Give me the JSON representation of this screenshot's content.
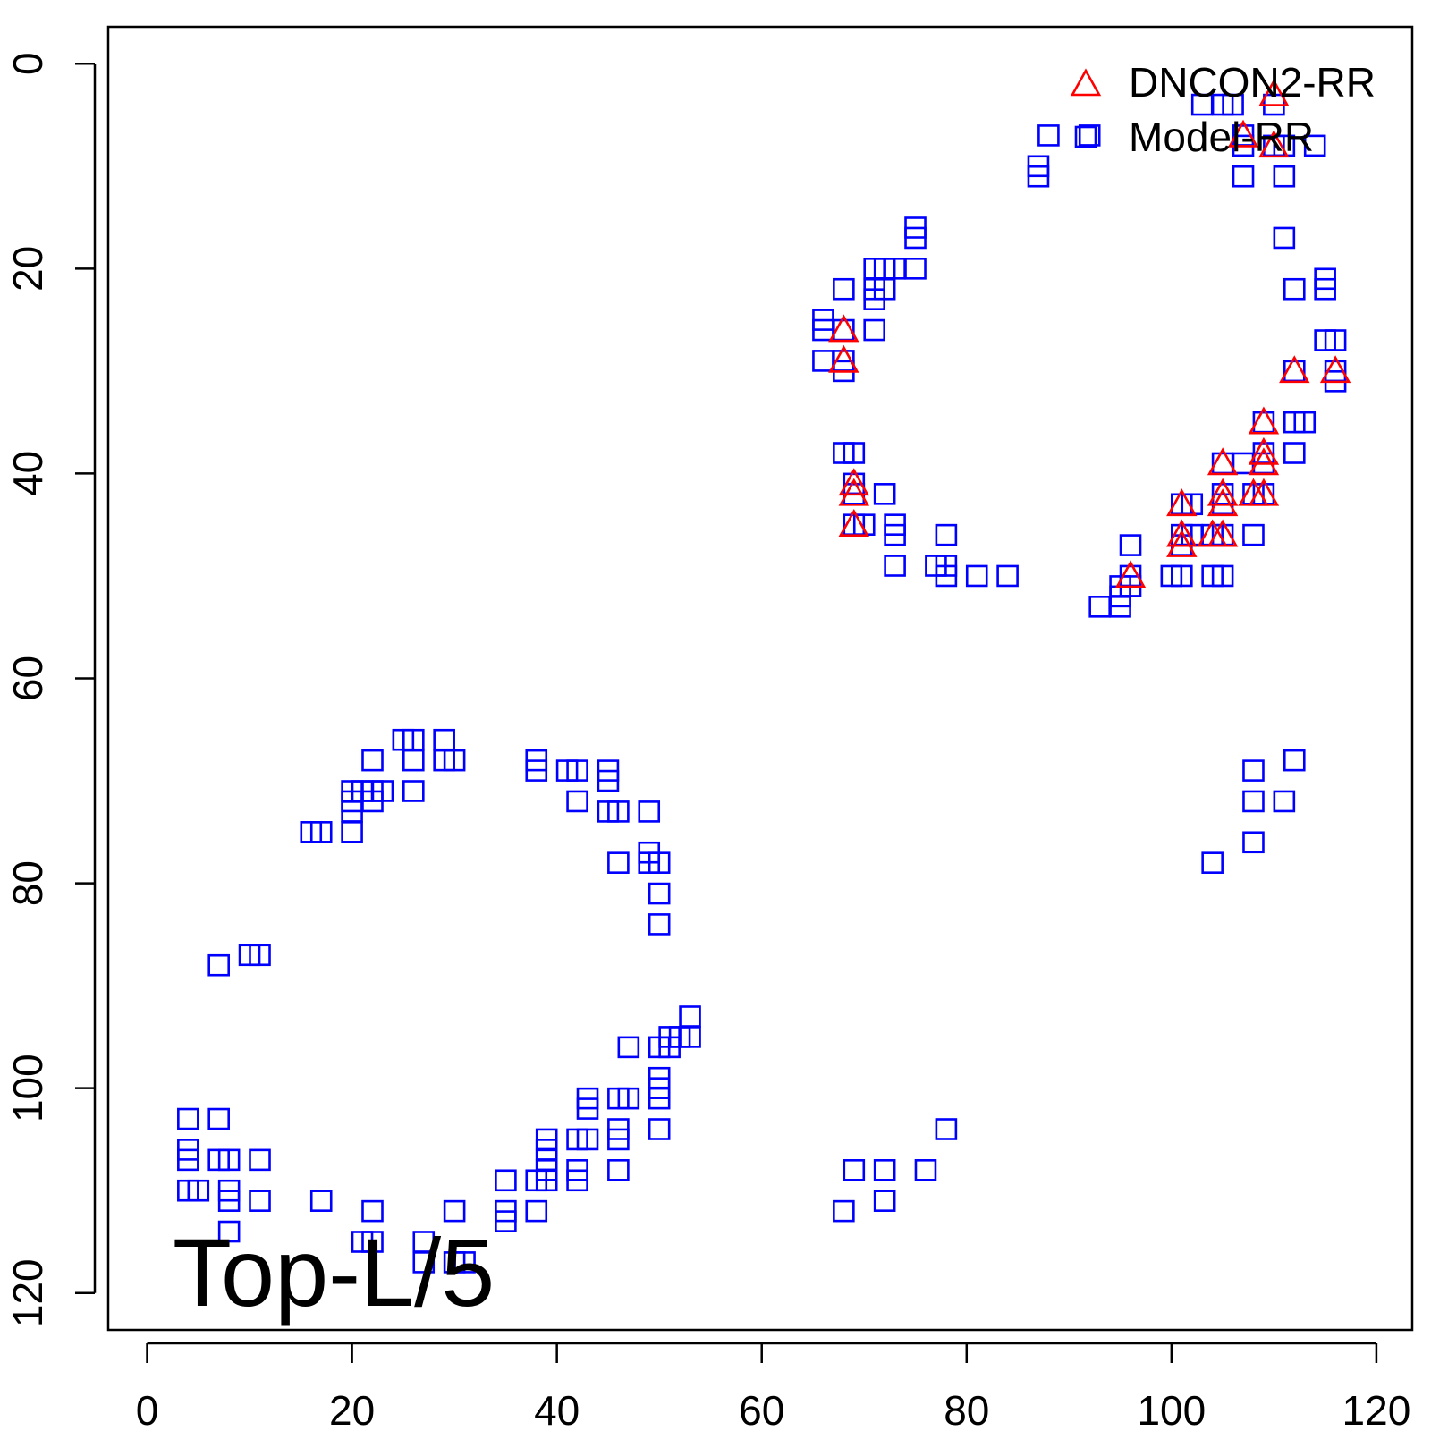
{
  "chart_data": {
    "type": "scatter",
    "title": "",
    "xlabel": "",
    "ylabel": "",
    "xlim": [
      -3.8,
      123.5
    ],
    "ylim": [
      123.6,
      -3.6
    ],
    "y_reversed": true,
    "x_ticks": [
      0,
      20,
      40,
      60,
      80,
      100,
      120
    ],
    "y_ticks": [
      0,
      20,
      40,
      60,
      80,
      100,
      120
    ],
    "grid": false,
    "legend_position": "top-right",
    "annotation": "Top-L/5",
    "series": [
      {
        "name": "DNCON2-RR",
        "marker": "triangle",
        "color": "#ff0000",
        "points": [
          [
            68,
            26
          ],
          [
            68,
            29
          ],
          [
            69,
            41
          ],
          [
            69,
            42
          ],
          [
            69,
            45
          ],
          [
            96,
            50
          ],
          [
            101,
            43
          ],
          [
            101,
            46
          ],
          [
            101,
            47
          ],
          [
            105,
            39
          ],
          [
            105,
            42
          ],
          [
            105,
            43
          ],
          [
            104,
            46
          ],
          [
            105,
            46
          ],
          [
            107,
            7
          ],
          [
            110,
            3
          ],
          [
            110,
            8
          ],
          [
            112,
            30
          ],
          [
            116,
            30
          ],
          [
            108,
            42
          ],
          [
            109,
            35
          ],
          [
            109,
            38
          ],
          [
            109,
            39
          ],
          [
            109,
            42
          ]
        ]
      },
      {
        "name": "Model-RR",
        "marker": "square",
        "color": "#0000ff",
        "points": [
          [
            4,
            103
          ],
          [
            4,
            106
          ],
          [
            4,
            107
          ],
          [
            4,
            110
          ],
          [
            5,
            110
          ],
          [
            7,
            88
          ],
          [
            7,
            103
          ],
          [
            7,
            107
          ],
          [
            8,
            107
          ],
          [
            8,
            110
          ],
          [
            8,
            111
          ],
          [
            8,
            114
          ],
          [
            10,
            87
          ],
          [
            11,
            87
          ],
          [
            11,
            107
          ],
          [
            11,
            111
          ],
          [
            16,
            75
          ],
          [
            17,
            75
          ],
          [
            17,
            111
          ],
          [
            20,
            71
          ],
          [
            20,
            72
          ],
          [
            20,
            73
          ],
          [
            20,
            75
          ],
          [
            21,
            71
          ],
          [
            21,
            115
          ],
          [
            22,
            68
          ],
          [
            22,
            71
          ],
          [
            22,
            72
          ],
          [
            22,
            112
          ],
          [
            22,
            115
          ],
          [
            23,
            71
          ],
          [
            25,
            66
          ],
          [
            26,
            66
          ],
          [
            26,
            68
          ],
          [
            26,
            71
          ],
          [
            27,
            115
          ],
          [
            27,
            117
          ],
          [
            29,
            66
          ],
          [
            29,
            68
          ],
          [
            30,
            68
          ],
          [
            30,
            112
          ],
          [
            30,
            117
          ],
          [
            31,
            117
          ],
          [
            35,
            109
          ],
          [
            35,
            112
          ],
          [
            35,
            113
          ],
          [
            38,
            68
          ],
          [
            38,
            69
          ],
          [
            38,
            109
          ],
          [
            38,
            112
          ],
          [
            39,
            105
          ],
          [
            39,
            106
          ],
          [
            39,
            107
          ],
          [
            39,
            108
          ],
          [
            39,
            109
          ],
          [
            41,
            69
          ],
          [
            42,
            69
          ],
          [
            42,
            72
          ],
          [
            42,
            105
          ],
          [
            42,
            108
          ],
          [
            42,
            109
          ],
          [
            43,
            101
          ],
          [
            43,
            102
          ],
          [
            43,
            105
          ],
          [
            45,
            69
          ],
          [
            45,
            70
          ],
          [
            45,
            73
          ],
          [
            46,
            73
          ],
          [
            46,
            78
          ],
          [
            46,
            101
          ],
          [
            46,
            104
          ],
          [
            46,
            105
          ],
          [
            46,
            108
          ],
          [
            47,
            96
          ],
          [
            47,
            101
          ],
          [
            49,
            73
          ],
          [
            49,
            77
          ],
          [
            49,
            78
          ],
          [
            50,
            78
          ],
          [
            50,
            81
          ],
          [
            50,
            84
          ],
          [
            50,
            96
          ],
          [
            50,
            99
          ],
          [
            50,
            100
          ],
          [
            50,
            101
          ],
          [
            50,
            104
          ],
          [
            51,
            95
          ],
          [
            51,
            96
          ],
          [
            52,
            95
          ],
          [
            53,
            93
          ],
          [
            53,
            95
          ],
          [
            66,
            25
          ],
          [
            66,
            26
          ],
          [
            66,
            29
          ],
          [
            68,
            22
          ],
          [
            68,
            26
          ],
          [
            68,
            29
          ],
          [
            68,
            30
          ],
          [
            68,
            38
          ],
          [
            68,
            112
          ],
          [
            69,
            38
          ],
          [
            69,
            41
          ],
          [
            69,
            42
          ],
          [
            69,
            45
          ],
          [
            69,
            108
          ],
          [
            70,
            45
          ],
          [
            71,
            20
          ],
          [
            71,
            22
          ],
          [
            71,
            23
          ],
          [
            71,
            26
          ],
          [
            72,
            20
          ],
          [
            72,
            22
          ],
          [
            72,
            42
          ],
          [
            72,
            108
          ],
          [
            72,
            111
          ],
          [
            73,
            20
          ],
          [
            73,
            45
          ],
          [
            73,
            46
          ],
          [
            73,
            49
          ],
          [
            75,
            16
          ],
          [
            75,
            17
          ],
          [
            75,
            20
          ],
          [
            76,
            108
          ],
          [
            77,
            49
          ],
          [
            78,
            46
          ],
          [
            78,
            49
          ],
          [
            78,
            50
          ],
          [
            78,
            104
          ],
          [
            81,
            50
          ],
          [
            84,
            50
          ],
          [
            87,
            10
          ],
          [
            87,
            11
          ],
          [
            88,
            7
          ],
          [
            92,
            7
          ],
          [
            93,
            53
          ],
          [
            95,
            51
          ],
          [
            95,
            52
          ],
          [
            95,
            53
          ],
          [
            96,
            47
          ],
          [
            96,
            50
          ],
          [
            96,
            51
          ],
          [
            100,
            50
          ],
          [
            101,
            43
          ],
          [
            101,
            46
          ],
          [
            101,
            47
          ],
          [
            101,
            50
          ],
          [
            102,
            43
          ],
          [
            102,
            46
          ],
          [
            103,
            4
          ],
          [
            104,
            46
          ],
          [
            104,
            50
          ],
          [
            104,
            78
          ],
          [
            105,
            4
          ],
          [
            105,
            39
          ],
          [
            105,
            42
          ],
          [
            105,
            43
          ],
          [
            105,
            46
          ],
          [
            105,
            50
          ],
          [
            106,
            4
          ],
          [
            107,
            7
          ],
          [
            107,
            8
          ],
          [
            107,
            11
          ],
          [
            107,
            39
          ],
          [
            108,
            42
          ],
          [
            108,
            46
          ],
          [
            108,
            69
          ],
          [
            108,
            72
          ],
          [
            108,
            76
          ],
          [
            109,
            35
          ],
          [
            109,
            38
          ],
          [
            109,
            39
          ],
          [
            109,
            42
          ],
          [
            110,
            4
          ],
          [
            110,
            8
          ],
          [
            111,
            8
          ],
          [
            111,
            11
          ],
          [
            111,
            17
          ],
          [
            111,
            72
          ],
          [
            112,
            22
          ],
          [
            112,
            30
          ],
          [
            112,
            35
          ],
          [
            112,
            38
          ],
          [
            112,
            68
          ],
          [
            113,
            35
          ],
          [
            114,
            8
          ],
          [
            115,
            21
          ],
          [
            115,
            22
          ],
          [
            115,
            27
          ],
          [
            116,
            27
          ],
          [
            116,
            30
          ],
          [
            116,
            31
          ]
        ]
      }
    ]
  }
}
